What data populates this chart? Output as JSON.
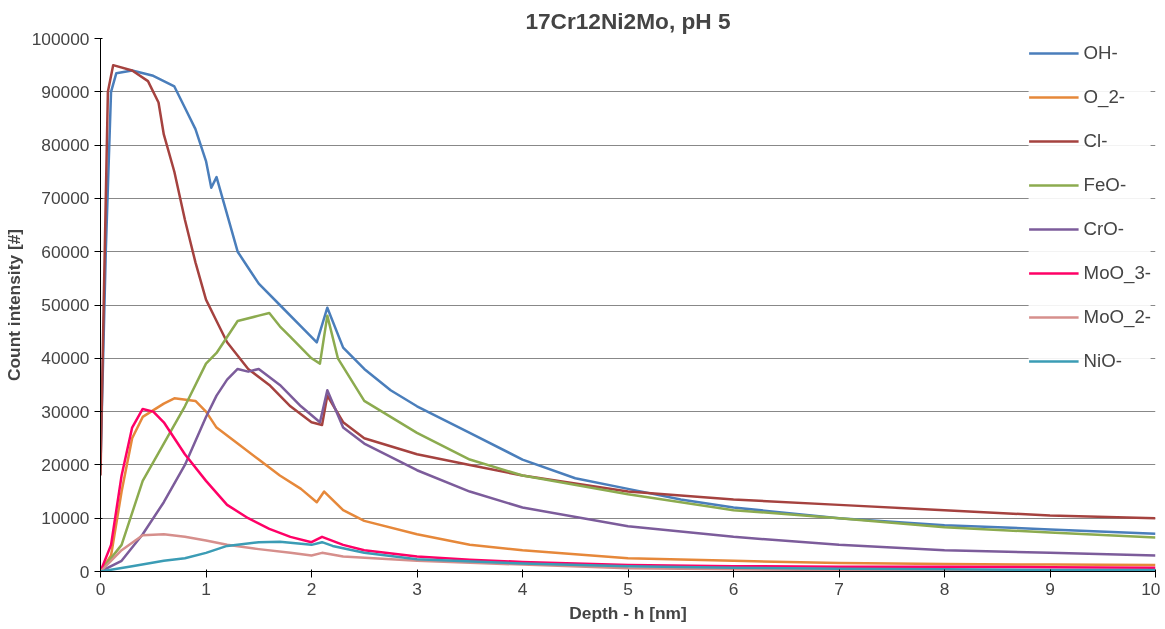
{
  "chart_data": {
    "type": "line",
    "title": "17Cr12Ni2Mo, pH 5",
    "xlabel": "Depth - h [nm]",
    "ylabel": "Count intensity [#]",
    "xlim": [
      0,
      10
    ],
    "xticks": [
      0,
      1,
      2,
      3,
      4,
      5,
      6,
      7,
      8,
      9,
      10
    ],
    "ylim": [
      0,
      100000
    ],
    "yticks": [
      0,
      10000,
      20000,
      30000,
      40000,
      50000,
      60000,
      70000,
      80000,
      90000,
      100000
    ],
    "grid": "y",
    "legend": "top right",
    "marker": "none",
    "line_style": "solid",
    "series": [
      {
        "name": "OH-",
        "color": "#4a7ebb",
        "x": [
          0,
          0.05,
          0.1,
          0.15,
          0.3,
          0.5,
          0.7,
          0.8,
          0.9,
          1.0,
          1.05,
          1.1,
          1.2,
          1.3,
          1.4,
          1.5,
          1.7,
          1.9,
          2.05,
          2.15,
          2.3,
          2.5,
          2.75,
          3,
          3.5,
          4,
          4.5,
          5,
          5.5,
          6,
          7,
          8,
          9,
          10
        ],
        "values": [
          20000,
          60000,
          90000,
          93500,
          94000,
          93000,
          91000,
          87000,
          83000,
          77000,
          72000,
          74000,
          67000,
          60000,
          57000,
          54000,
          50000,
          46000,
          43000,
          49500,
          42000,
          38000,
          34000,
          31000,
          26000,
          21000,
          17500,
          15500,
          13500,
          12000,
          10000,
          8700,
          7900,
          7100
        ]
      },
      {
        "name": "O_2-",
        "color": "#e6883a",
        "x": [
          0,
          0.1,
          0.2,
          0.3,
          0.4,
          0.6,
          0.7,
          0.9,
          1.0,
          1.1,
          1.3,
          1.5,
          1.7,
          1.9,
          2.05,
          2.12,
          2.3,
          2.5,
          3,
          3.5,
          4,
          5,
          6,
          7,
          8,
          9,
          10
        ],
        "values": [
          0,
          3000,
          15000,
          25000,
          29000,
          31500,
          32500,
          32000,
          30000,
          27000,
          24000,
          21000,
          18000,
          15500,
          13000,
          15000,
          11500,
          9500,
          7000,
          5000,
          4000,
          2500,
          2000,
          1600,
          1400,
          1300,
          1200
        ]
      },
      {
        "name": "Cl-",
        "color": "#a5423f",
        "x": [
          0,
          0.03,
          0.07,
          0.12,
          0.3,
          0.45,
          0.55,
          0.6,
          0.7,
          0.8,
          0.9,
          1.0,
          1.1,
          1.2,
          1.4,
          1.6,
          1.8,
          2.0,
          2.1,
          2.15,
          2.3,
          2.5,
          3,
          3.5,
          4,
          5,
          6,
          7,
          8,
          9,
          10
        ],
        "values": [
          18000,
          50000,
          90000,
          95000,
          94000,
          92000,
          88000,
          82000,
          75000,
          66000,
          58000,
          51000,
          47000,
          43000,
          38000,
          35000,
          31000,
          28000,
          27500,
          33000,
          28000,
          25000,
          22000,
          20000,
          18000,
          15000,
          13500,
          12500,
          11500,
          10500,
          10000
        ]
      },
      {
        "name": "FeO-",
        "color": "#8cab4f",
        "x": [
          0,
          0.2,
          0.4,
          0.6,
          0.8,
          1.0,
          1.1,
          1.2,
          1.3,
          1.5,
          1.6,
          1.7,
          1.8,
          2.0,
          2.08,
          2.15,
          2.25,
          2.5,
          2.75,
          3,
          3.5,
          4,
          5,
          6,
          7,
          8,
          9,
          10
        ],
        "values": [
          0,
          5000,
          17000,
          24000,
          31000,
          39000,
          41000,
          44000,
          47000,
          48000,
          48500,
          46000,
          44000,
          40000,
          39000,
          48000,
          40000,
          32000,
          29000,
          26000,
          21000,
          18000,
          14500,
          11500,
          10000,
          8300,
          7300,
          6400
        ]
      },
      {
        "name": "CrO-",
        "color": "#7c5c9b",
        "x": [
          0,
          0.2,
          0.4,
          0.6,
          0.8,
          1.0,
          1.1,
          1.2,
          1.3,
          1.4,
          1.5,
          1.7,
          1.9,
          2.08,
          2.15,
          2.3,
          2.5,
          3,
          3.5,
          4,
          5,
          6,
          7,
          8,
          9,
          10
        ],
        "values": [
          0,
          2000,
          7000,
          13000,
          20000,
          29000,
          33000,
          36000,
          38000,
          37500,
          38000,
          35000,
          31000,
          28000,
          34000,
          27000,
          24000,
          19000,
          15000,
          12000,
          8500,
          6500,
          5000,
          4000,
          3500,
          3000
        ]
      },
      {
        "name": "MoO_3-",
        "color": "#ff0066",
        "x": [
          0,
          0.1,
          0.2,
          0.3,
          0.4,
          0.5,
          0.6,
          0.8,
          1.0,
          1.2,
          1.4,
          1.6,
          1.8,
          2.0,
          2.1,
          2.3,
          2.5,
          3,
          3.5,
          4,
          5,
          6,
          7,
          8,
          9,
          10
        ],
        "values": [
          0,
          5000,
          18000,
          27000,
          30500,
          30000,
          28000,
          22000,
          17000,
          12500,
          10000,
          8000,
          6500,
          5500,
          6500,
          5000,
          4000,
          2800,
          2200,
          1800,
          1200,
          1000,
          900,
          900,
          800,
          700
        ]
      },
      {
        "name": "MoO_2-",
        "color": "#d68f8c",
        "x": [
          0,
          0.2,
          0.4,
          0.6,
          0.8,
          1.0,
          1.2,
          1.5,
          1.8,
          2.0,
          2.1,
          2.3,
          3,
          4,
          5,
          6,
          7,
          8,
          9,
          10
        ],
        "values": [
          0,
          4000,
          6800,
          7000,
          6500,
          5800,
          5000,
          4200,
          3500,
          3000,
          3500,
          2800,
          2000,
          1300,
          600,
          400,
          300,
          100,
          0,
          0
        ]
      },
      {
        "name": "NiO-",
        "color": "#3b9cb5",
        "x": [
          0,
          0.3,
          0.6,
          0.8,
          1.0,
          1.2,
          1.5,
          1.7,
          2.0,
          2.1,
          2.2,
          2.5,
          3,
          4,
          5,
          6,
          7,
          8,
          9,
          10
        ],
        "values": [
          0,
          1000,
          2000,
          2500,
          3500,
          4800,
          5500,
          5600,
          5000,
          5500,
          4800,
          3500,
          2300,
          1500,
          1000,
          700,
          500,
          400,
          300,
          300
        ]
      }
    ]
  }
}
